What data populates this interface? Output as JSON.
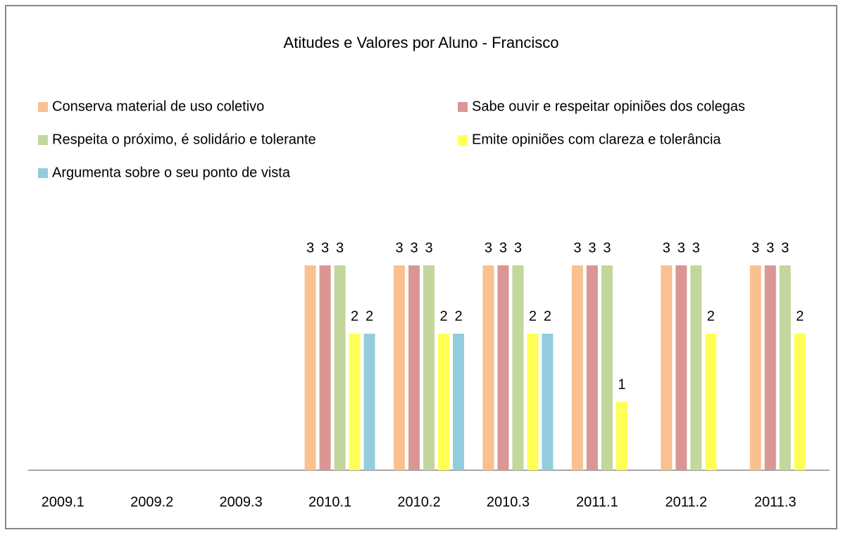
{
  "chart_data": {
    "type": "bar",
    "title": "Atitudes e Valores por Aluno - Francisco",
    "categories": [
      "2009.1",
      "2009.2",
      "2009.3",
      "2010.1",
      "2010.2",
      "2010.3",
      "2011.1",
      "2011.2",
      "2011.3"
    ],
    "series": [
      {
        "name": "Conserva material de uso coletivo",
        "color": "#fac090",
        "values": [
          null,
          null,
          null,
          3,
          3,
          3,
          3,
          3,
          3
        ]
      },
      {
        "name": "Sabe ouvir e respeitar opiniões dos colegas",
        "color": "#d99694",
        "values": [
          null,
          null,
          null,
          3,
          3,
          3,
          3,
          3,
          3
        ]
      },
      {
        "name": "Respeita o próximo, é solidário e tolerante",
        "color": "#c3d69b",
        "values": [
          null,
          null,
          null,
          3,
          3,
          3,
          3,
          3,
          3
        ]
      },
      {
        "name": "Emite opiniões com clareza e tolerância",
        "color": "#ffff55",
        "values": [
          null,
          null,
          null,
          2,
          2,
          2,
          1,
          2,
          2
        ]
      },
      {
        "name": "Argumenta sobre o seu ponto de vista",
        "color": "#93cddd",
        "values": [
          null,
          null,
          null,
          2,
          2,
          2,
          null,
          null,
          null
        ]
      }
    ]
  }
}
